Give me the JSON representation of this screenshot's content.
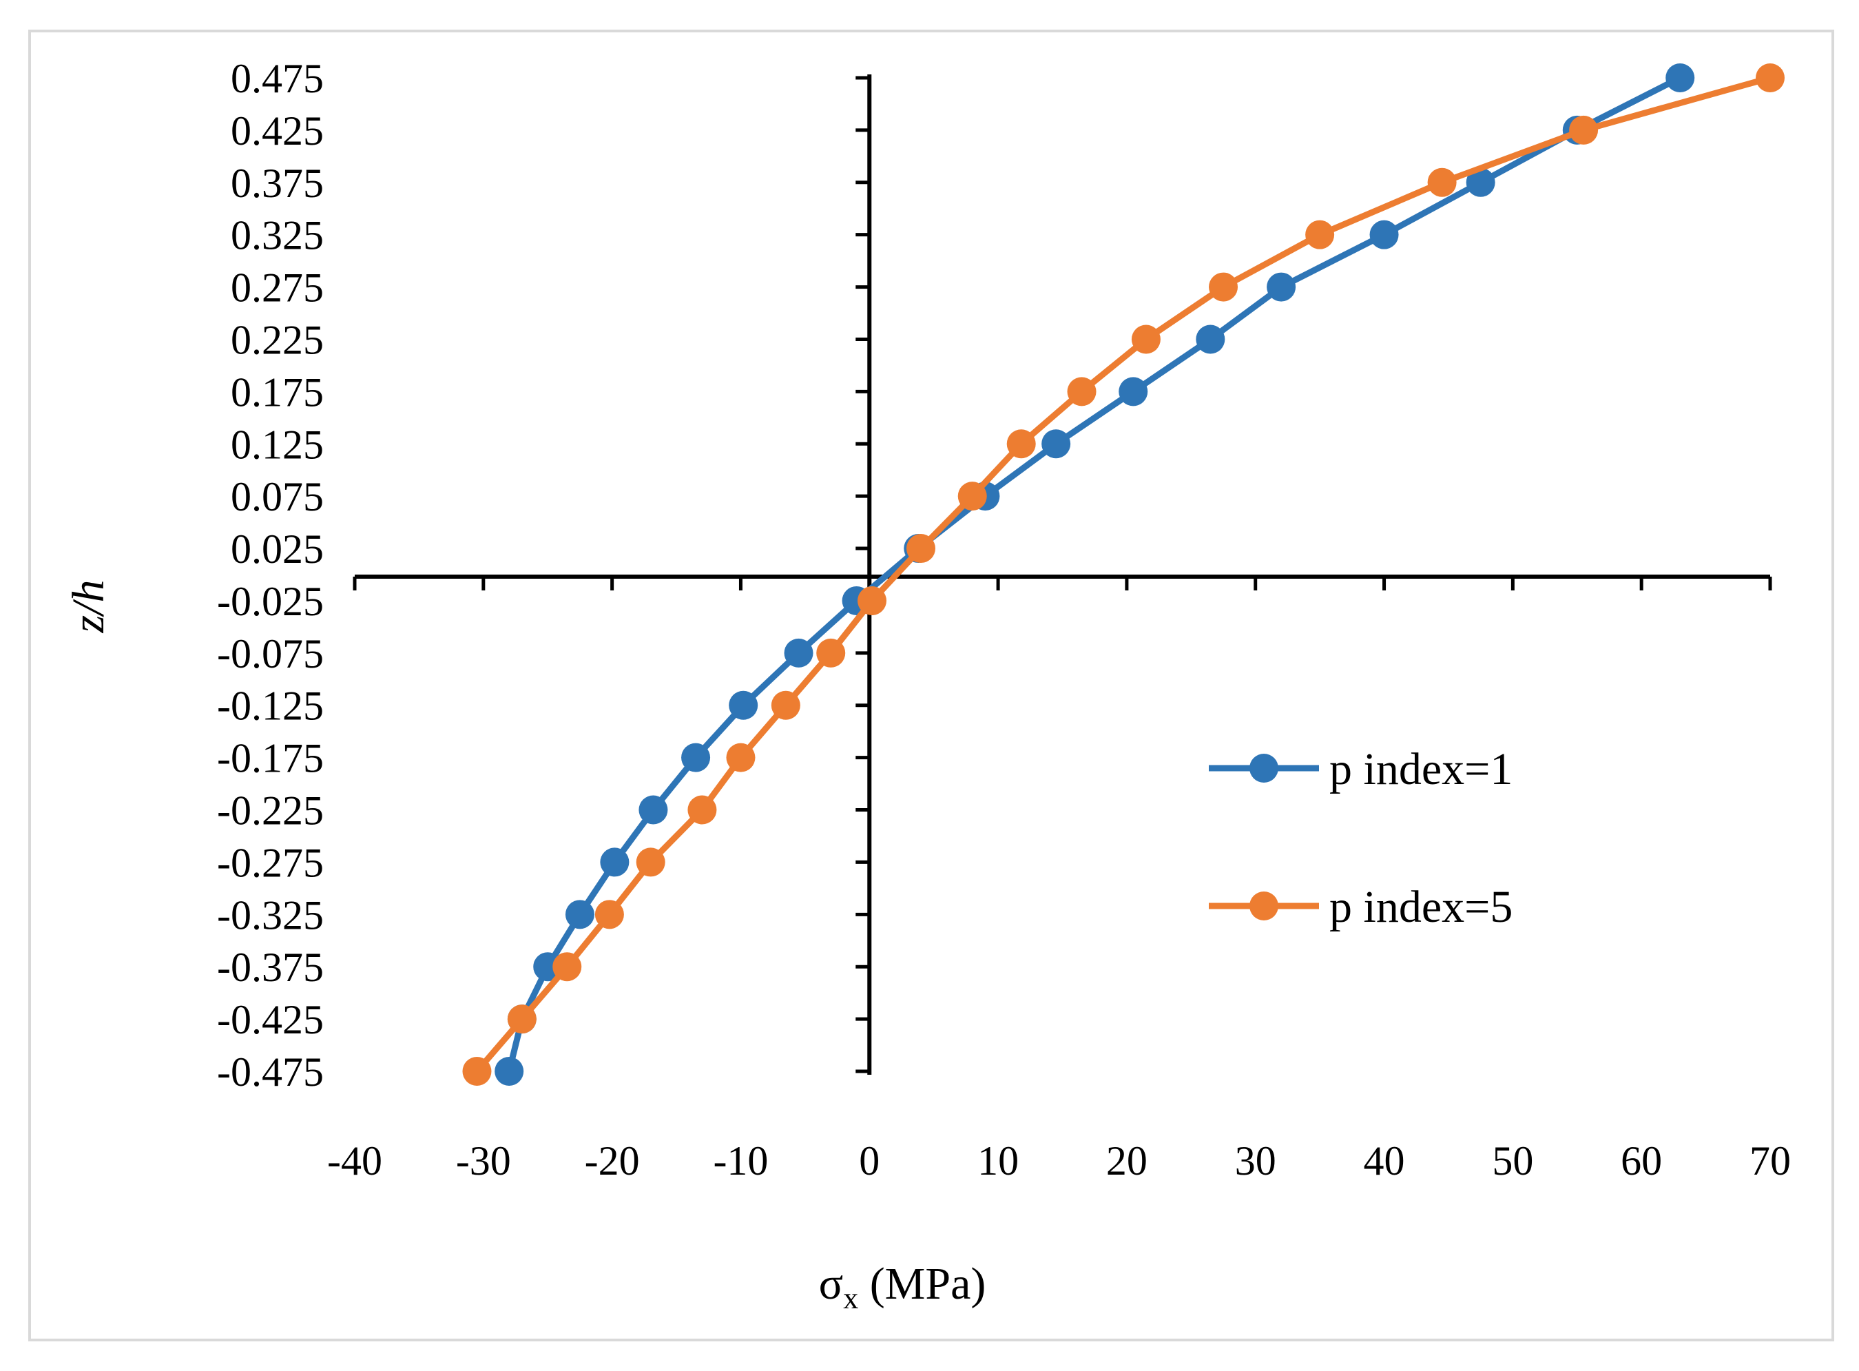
{
  "chart_data": {
    "type": "line",
    "xlabel": "σx (MPa)",
    "xlabel_main": "σ",
    "xlabel_sub": "x",
    "xlabel_unit": " (MPa)",
    "ylabel": "z/h",
    "xlim": [
      -40,
      70
    ],
    "ylim": [
      -0.475,
      0.475
    ],
    "x_ticks": [
      -40,
      -30,
      -20,
      -10,
      0,
      10,
      20,
      30,
      40,
      50,
      60,
      70
    ],
    "x_tick_labels": [
      "-40",
      "-30",
      "-20",
      "-10",
      "0",
      "10",
      "20",
      "30",
      "40",
      "50",
      "60",
      "70"
    ],
    "y_ticks": [
      0.475,
      0.425,
      0.375,
      0.325,
      0.275,
      0.225,
      0.175,
      0.125,
      0.075,
      0.025,
      -0.025,
      -0.075,
      -0.125,
      -0.175,
      -0.225,
      -0.275,
      -0.325,
      -0.375,
      -0.425,
      -0.475
    ],
    "y_tick_labels": [
      "0.475",
      "0.425",
      "0.375",
      "0.325",
      "0.275",
      "0.225",
      "0.175",
      "0.125",
      "0.075",
      "0.025",
      "-0.025",
      "-0.075",
      "-0.125",
      "-0.175",
      "-0.225",
      "-0.275",
      "-0.325",
      "-0.375",
      "-0.425",
      "-0.475"
    ],
    "grid": false,
    "legend_position": "right-middle",
    "series": [
      {
        "name": "p index=1",
        "color": "#2E75B6",
        "points": [
          [
            -28.0,
            -0.475
          ],
          [
            -27.0,
            -0.425
          ],
          [
            -25.0,
            -0.375
          ],
          [
            -22.5,
            -0.325
          ],
          [
            -19.8,
            -0.275
          ],
          [
            -16.8,
            -0.225
          ],
          [
            -13.5,
            -0.175
          ],
          [
            -9.8,
            -0.125
          ],
          [
            -5.5,
            -0.075
          ],
          [
            -1.0,
            -0.025
          ],
          [
            3.8,
            0.025
          ],
          [
            9.0,
            0.075
          ],
          [
            14.5,
            0.125
          ],
          [
            20.5,
            0.175
          ],
          [
            26.5,
            0.225
          ],
          [
            32.0,
            0.275
          ],
          [
            40.0,
            0.325
          ],
          [
            47.5,
            0.375
          ],
          [
            55.0,
            0.425
          ],
          [
            63.0,
            0.475
          ]
        ]
      },
      {
        "name": "p index=5",
        "color": "#ED7D31",
        "points": [
          [
            -30.5,
            -0.475
          ],
          [
            -27.0,
            -0.425
          ],
          [
            -23.5,
            -0.375
          ],
          [
            -20.2,
            -0.325
          ],
          [
            -17.0,
            -0.275
          ],
          [
            -13.0,
            -0.225
          ],
          [
            -10.0,
            -0.175
          ],
          [
            -6.5,
            -0.125
          ],
          [
            -3.0,
            -0.075
          ],
          [
            0.2,
            -0.025
          ],
          [
            4.0,
            0.025
          ],
          [
            8.0,
            0.075
          ],
          [
            11.8,
            0.125
          ],
          [
            16.5,
            0.175
          ],
          [
            21.5,
            0.225
          ],
          [
            27.5,
            0.275
          ],
          [
            35.0,
            0.325
          ],
          [
            44.5,
            0.375
          ],
          [
            55.5,
            0.425
          ],
          [
            70.0,
            0.475
          ]
        ]
      }
    ]
  }
}
